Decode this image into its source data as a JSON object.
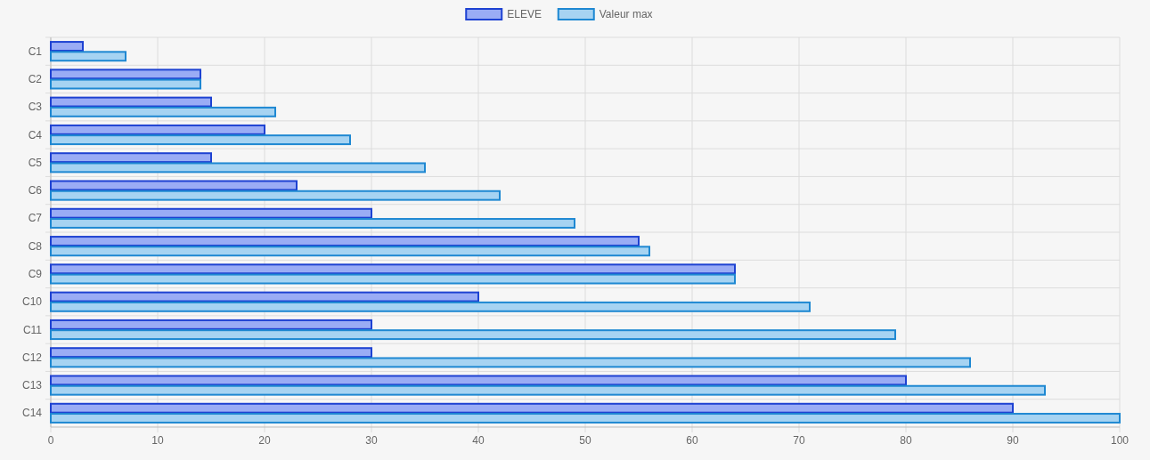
{
  "chart_data": {
    "type": "bar",
    "orientation": "horizontal",
    "categories": [
      "C1",
      "C2",
      "C3",
      "C4",
      "C5",
      "C6",
      "C7",
      "C8",
      "C9",
      "C10",
      "C11",
      "C12",
      "C13",
      "C14"
    ],
    "series": [
      {
        "name": "ELEVE",
        "color": "#9aacf5",
        "values": [
          3,
          14,
          15,
          20,
          15,
          23,
          30,
          55,
          64,
          40,
          30,
          30,
          80,
          90
        ]
      },
      {
        "name": "Valeur max",
        "color": "#a6d3f2",
        "values": [
          7,
          14,
          21,
          28,
          35,
          42,
          49,
          56,
          64,
          71,
          79,
          86,
          93,
          100
        ]
      }
    ],
    "xlim": [
      0,
      100
    ],
    "xticks": [
      0,
      10,
      20,
      30,
      40,
      50,
      60,
      70,
      80,
      90,
      100
    ],
    "grid": true,
    "legend": "top"
  }
}
